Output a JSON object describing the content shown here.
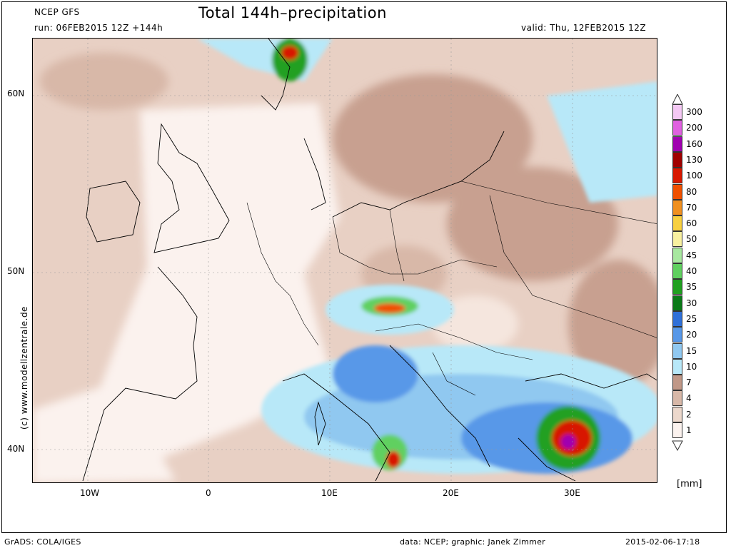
{
  "header": {
    "model": "NCEP GFS",
    "run": "run: 06FEB2015 12Z +144h",
    "title": "Total 144h–precipitation",
    "valid": "valid: Thu, 12FEB2015 12Z"
  },
  "map": {
    "lat_labels": [
      "60N",
      "50N",
      "40N"
    ],
    "lon_labels": [
      "10W",
      "0",
      "10E",
      "20E",
      "30E"
    ],
    "credit": "(c) www.modellzentrale.de"
  },
  "legend": {
    "levels": [
      {
        "label": "300",
        "color": "#f4c8f4"
      },
      {
        "label": "200",
        "color": "#e060e0"
      },
      {
        "label": "160",
        "color": "#a000b0"
      },
      {
        "label": "130",
        "color": "#a00000"
      },
      {
        "label": "100",
        "color": "#d81800"
      },
      {
        "label": "80",
        "color": "#f05000"
      },
      {
        "label": "70",
        "color": "#f09020"
      },
      {
        "label": "60",
        "color": "#f8d040"
      },
      {
        "label": "50",
        "color": "#f8f0a0"
      },
      {
        "label": "45",
        "color": "#a8e8a0"
      },
      {
        "label": "40",
        "color": "#60d060"
      },
      {
        "label": "35",
        "color": "#20a020"
      },
      {
        "label": "30",
        "color": "#0a7a18"
      },
      {
        "label": "25",
        "color": "#3070d8"
      },
      {
        "label": "20",
        "color": "#5898e8"
      },
      {
        "label": "15",
        "color": "#90c8f0"
      },
      {
        "label": "10",
        "color": "#b8e8f8"
      },
      {
        "label": "7",
        "color": "#c09888"
      },
      {
        "label": "4",
        "color": "#d8b8a8"
      },
      {
        "label": "2",
        "color": "#ecd8cc"
      },
      {
        "label": "1",
        "color": "#fbf2ee"
      }
    ],
    "unit": "[mm]"
  },
  "footer": {
    "grads": "GrADS: COLA/IGES",
    "data": "data: NCEP; graphic: Janek Zimmer",
    "timestamp": "2015-02-06-17:18"
  }
}
